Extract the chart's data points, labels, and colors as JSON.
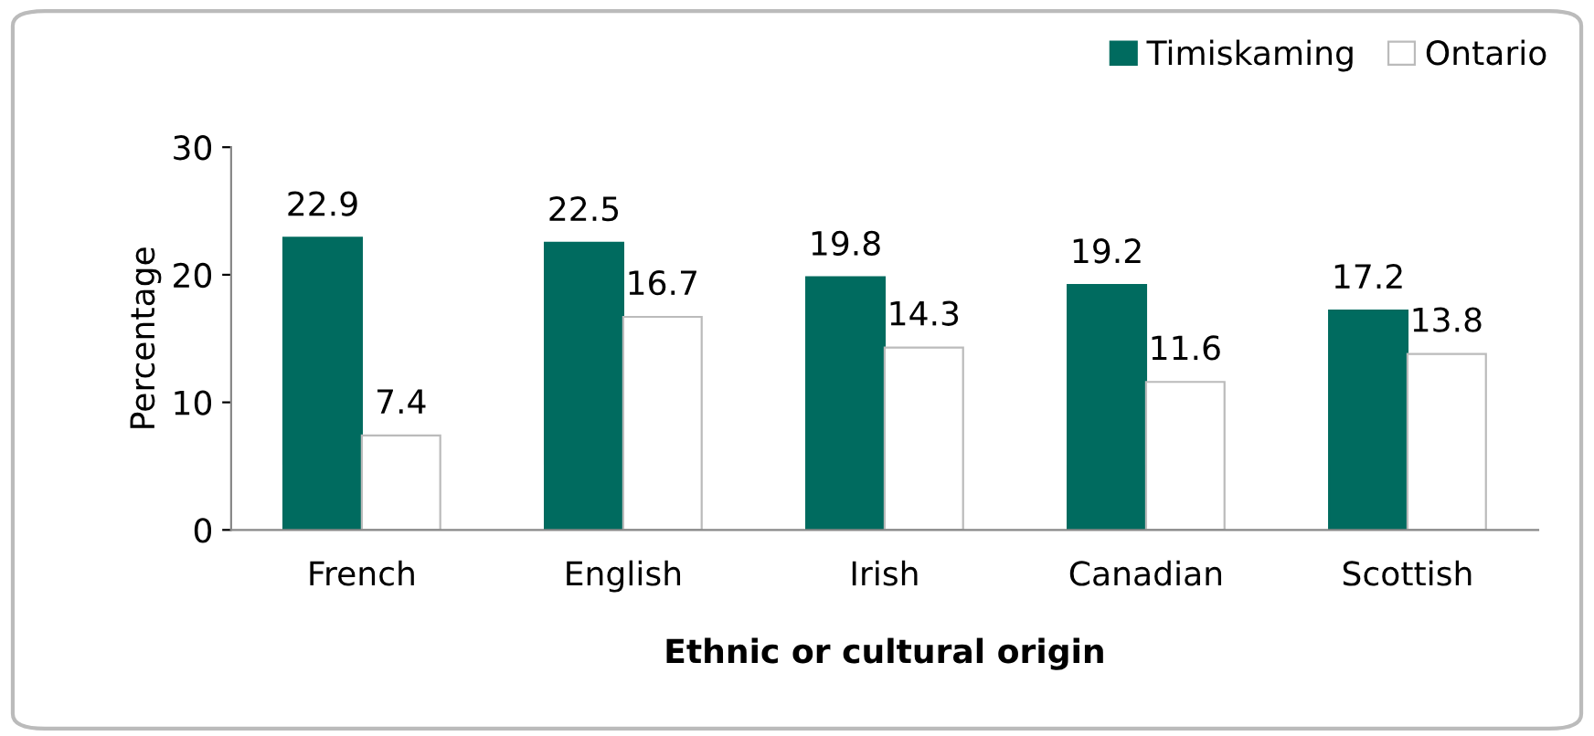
{
  "chart_data": {
    "type": "bar",
    "xlabel": "Ethnic or cultural origin",
    "ylabel": "Percentage",
    "categories": [
      "French",
      "English",
      "Irish",
      "Canadian",
      "Scottish"
    ],
    "series": [
      {
        "name": "Timiskaming",
        "color": "#006b5f",
        "values": [
          22.9,
          22.5,
          19.8,
          19.2,
          17.2
        ]
      },
      {
        "name": "Ontario",
        "color": "#ffffff",
        "values": [
          7.4,
          16.7,
          14.3,
          11.6,
          13.8
        ]
      }
    ],
    "ylim": [
      0,
      30
    ],
    "yticks": [
      0,
      10,
      20,
      30
    ],
    "data_labels": true,
    "legend": "top right"
  }
}
